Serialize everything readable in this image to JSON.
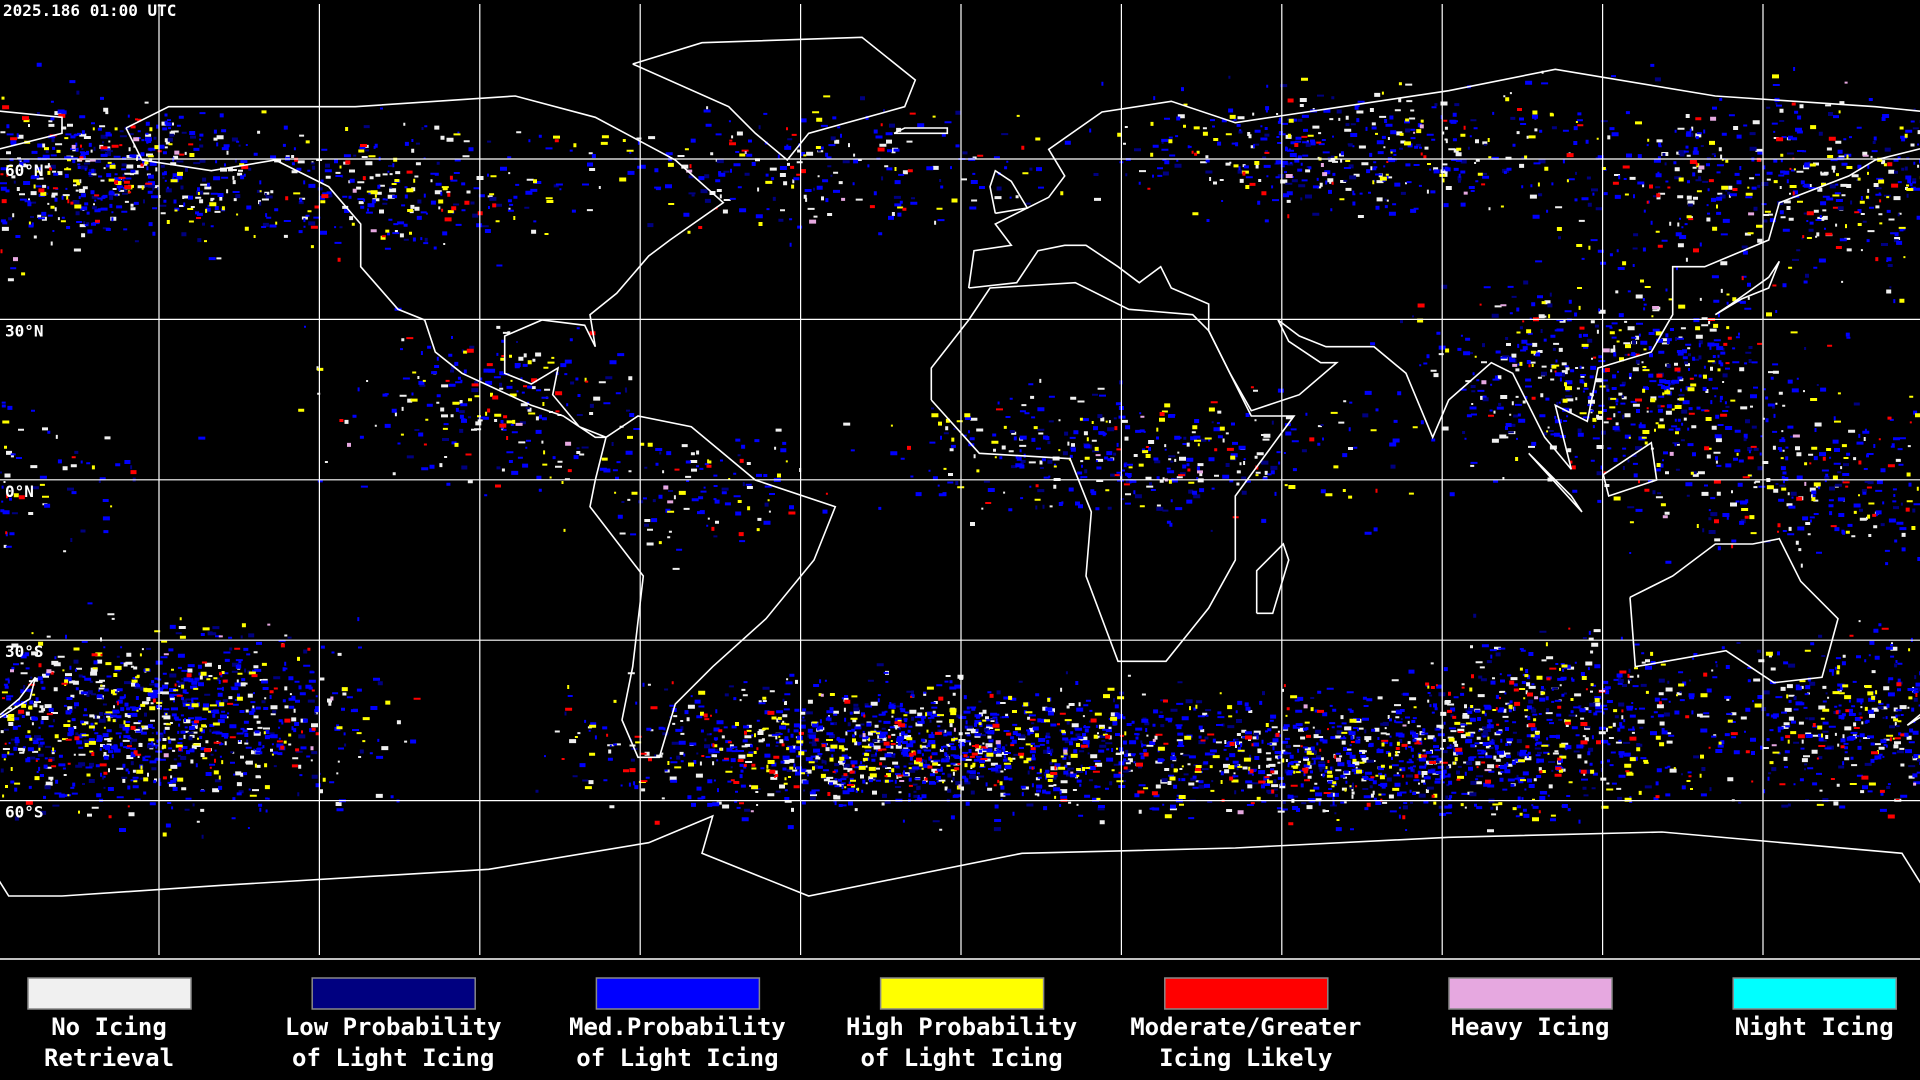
{
  "header": {
    "timestamp": "2025.186 01:00 UTC"
  },
  "latitude_labels": [
    "60°N",
    "30°N",
    "0°N",
    "30°S",
    "60°S"
  ],
  "legend": [
    {
      "lines": [
        "No Icing",
        "Retrieval"
      ],
      "color": "#f0f0f0"
    },
    {
      "lines": [
        "Low Probability",
        "of Light Icing"
      ],
      "color": "#000080"
    },
    {
      "lines": [
        "Med.Probability",
        "of Light Icing"
      ],
      "color": "#0000ff"
    },
    {
      "lines": [
        "High Probability",
        "of Light Icing"
      ],
      "color": "#ffff00"
    },
    {
      "lines": [
        "Moderate/Greater",
        "Icing Likely"
      ],
      "color": "#ff0000"
    },
    {
      "lines": [
        "Heavy Icing"
      ],
      "color": "#e6a8e0"
    },
    {
      "lines": [
        "Night Icing"
      ],
      "color": "#00ffff"
    }
  ]
}
